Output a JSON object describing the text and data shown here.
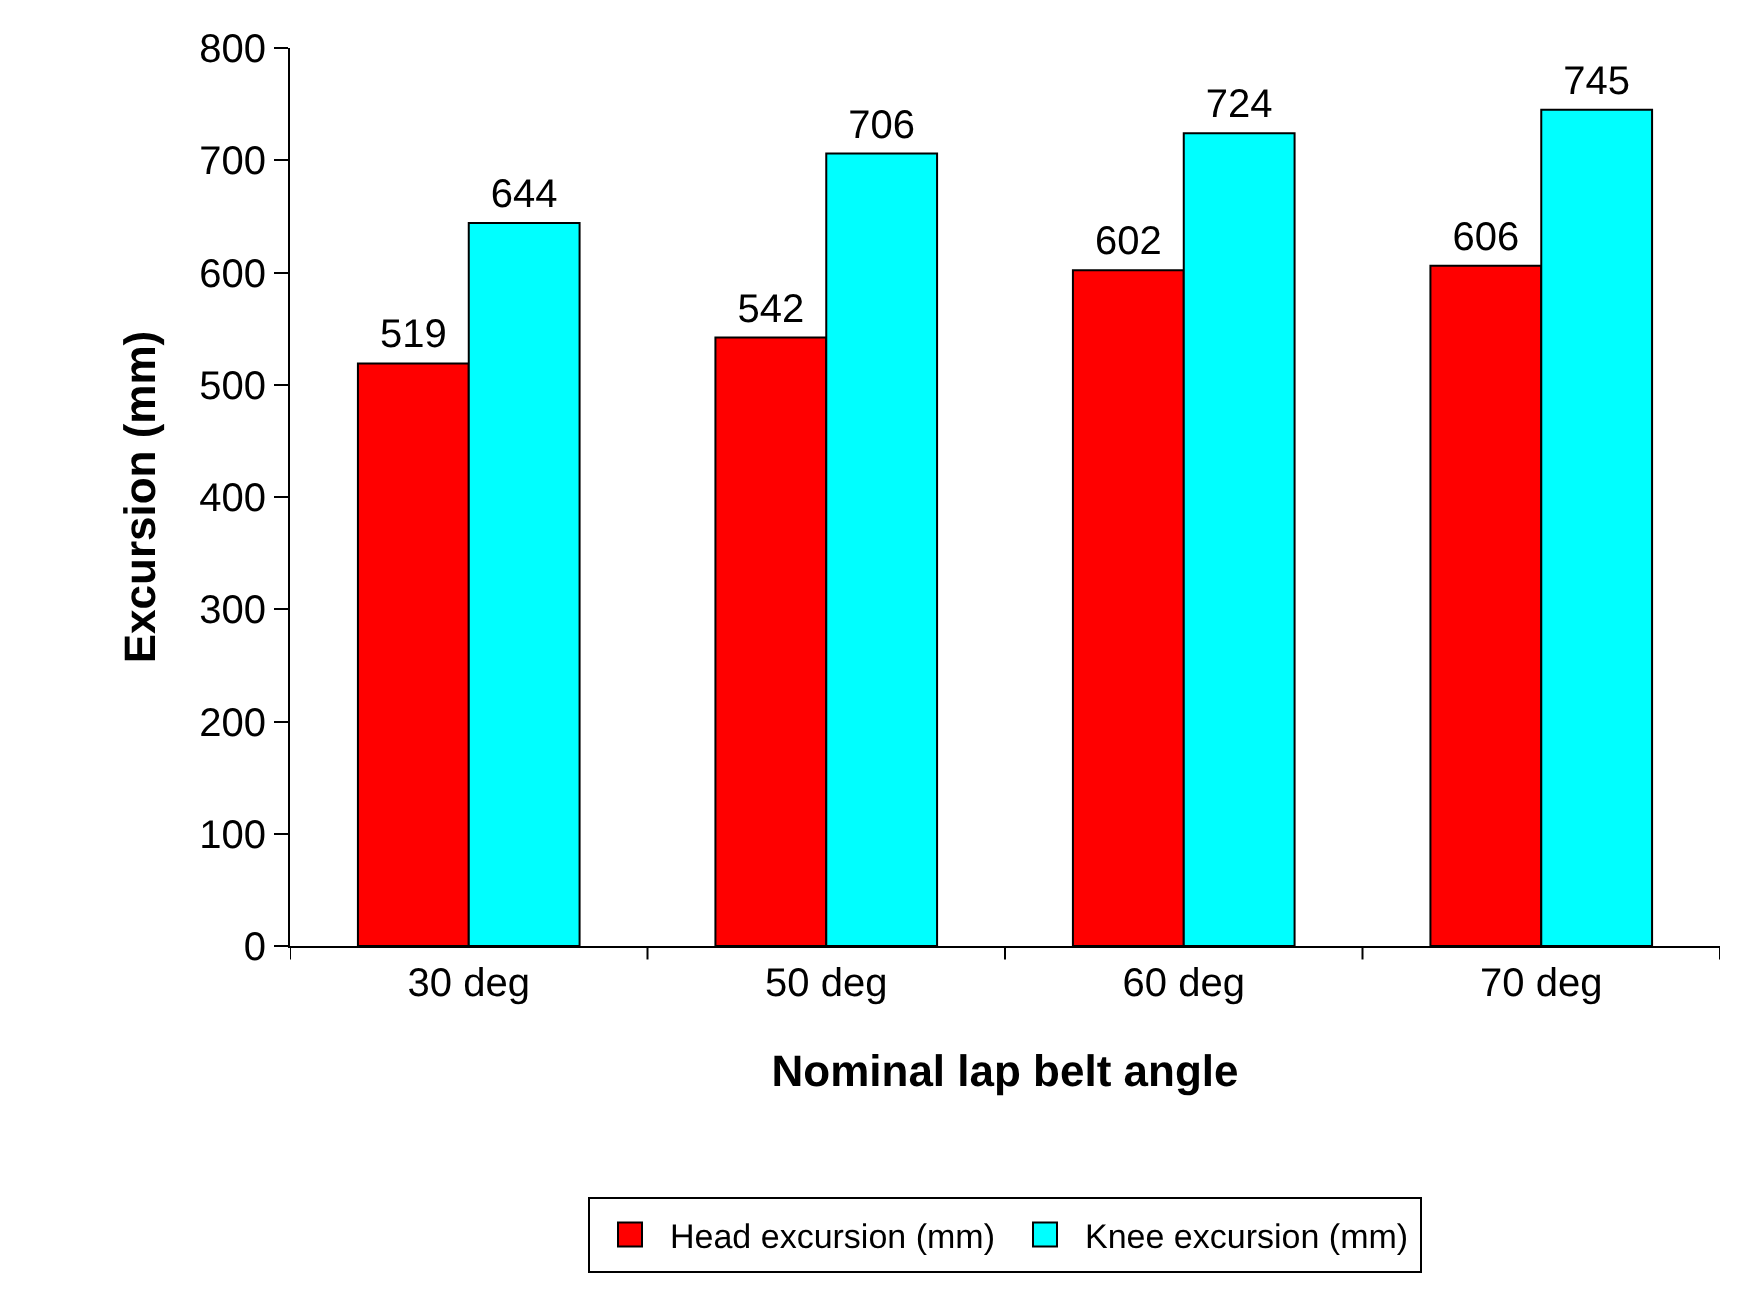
{
  "chart_data": {
    "type": "bar",
    "xlabel": "Nominal lap belt angle",
    "ylabel": "Excursion (mm)",
    "categories": [
      "30 deg",
      "50 deg",
      "60 deg",
      "70 deg"
    ],
    "series": [
      {
        "name": "Head excursion (mm)",
        "color": "#ff0000",
        "values": [
          519,
          542,
          602,
          606
        ]
      },
      {
        "name": "Knee excursion (mm)",
        "color": "#00ffff",
        "values": [
          644,
          706,
          724,
          745
        ]
      }
    ],
    "ylim": [
      0,
      800
    ],
    "yticks": [
      0,
      100,
      200,
      300,
      400,
      500,
      600,
      700,
      800
    ],
    "grid": false,
    "legend": "bottom",
    "data_labels": true
  }
}
